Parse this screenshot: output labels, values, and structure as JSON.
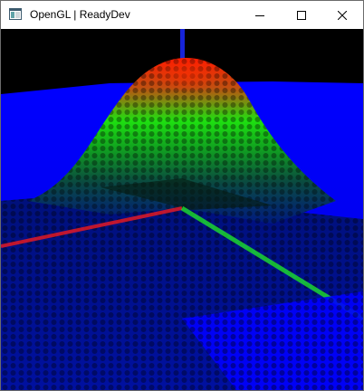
{
  "window": {
    "title": "OpenGL | ReadyDev",
    "icon": "app-window-icon",
    "controls": {
      "minimize_icon": "minimize-icon",
      "maximize_icon": "maximize-icon",
      "close_icon": "close-icon"
    }
  },
  "scene": {
    "description_type": "3d-gaussian-surface-points",
    "background": "#000000",
    "colors": {
      "low": "#0000ff",
      "mid": "#00ff00",
      "high": "#ff0000",
      "axis_x": "#ff0000",
      "axis_y": "#0000ff",
      "axis_z": "#00ff00"
    }
  }
}
